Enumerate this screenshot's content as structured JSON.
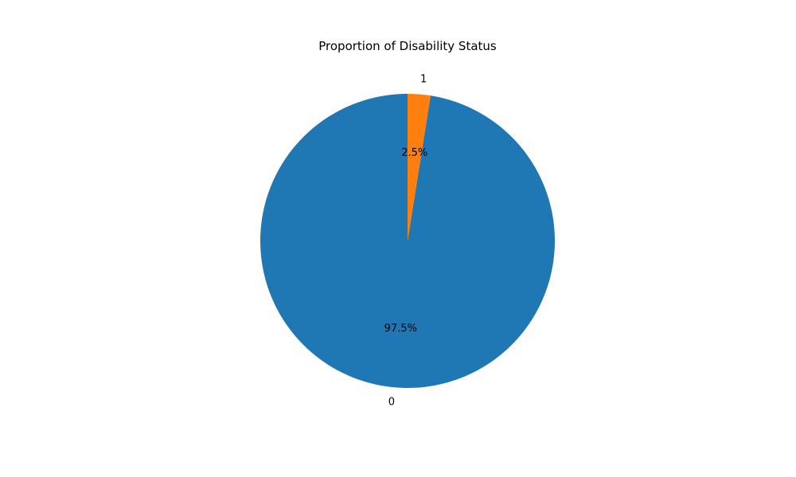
{
  "chart_data": {
    "type": "pie",
    "title": "Proportion of Disability Status",
    "start_angle_deg": 90,
    "direction": "counterclockwise",
    "slices": [
      {
        "label": "0",
        "value": 97.5,
        "pct_label": "97.5%",
        "color": "#1f77b4"
      },
      {
        "label": "1",
        "value": 2.5,
        "pct_label": "2.5%",
        "color": "#ff7f0e"
      }
    ]
  }
}
